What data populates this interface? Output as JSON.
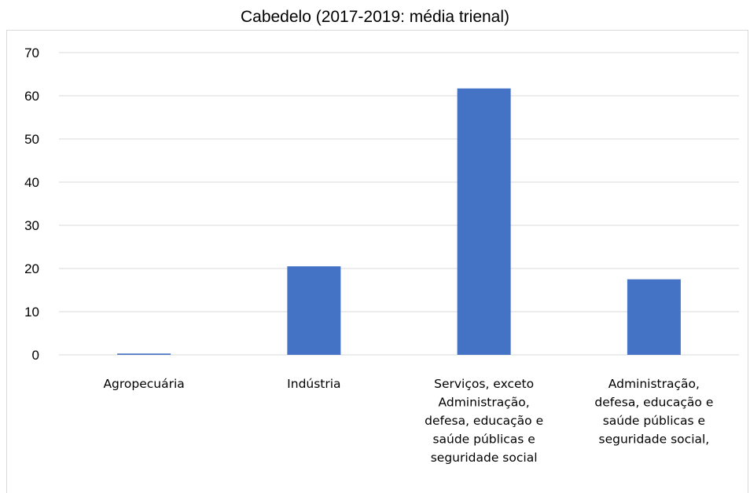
{
  "chart_data": {
    "type": "bar",
    "title": "Cabedelo (2017-2019: média trienal)",
    "xlabel": "",
    "ylabel": "",
    "ylim": [
      0,
      70
    ],
    "yticks": [
      0,
      10,
      20,
      30,
      40,
      50,
      60,
      70
    ],
    "grid": true,
    "legend": "none",
    "categories": [
      "Agropecuária",
      "Indústria",
      "Serviços, exceto Administração, defesa, educação e saúde públicas e seguridade social",
      "Administração, defesa, educação e saúde públicas e seguridade social,"
    ],
    "category_lines": [
      [
        "Agropecuária"
      ],
      [
        "Indústria"
      ],
      [
        "Serviços, exceto",
        "Administração,",
        "defesa, educação e",
        "saúde públicas e",
        "seguridade social"
      ],
      [
        "Administração,",
        "defesa, educação e",
        "saúde públicas e",
        "seguridade social,"
      ]
    ],
    "values": [
      0.3,
      20.5,
      61.7,
      17.5
    ],
    "colors": {
      "bar": "#4472c4",
      "grid": "#d9d9d9",
      "axis": "#d9d9d9"
    }
  }
}
